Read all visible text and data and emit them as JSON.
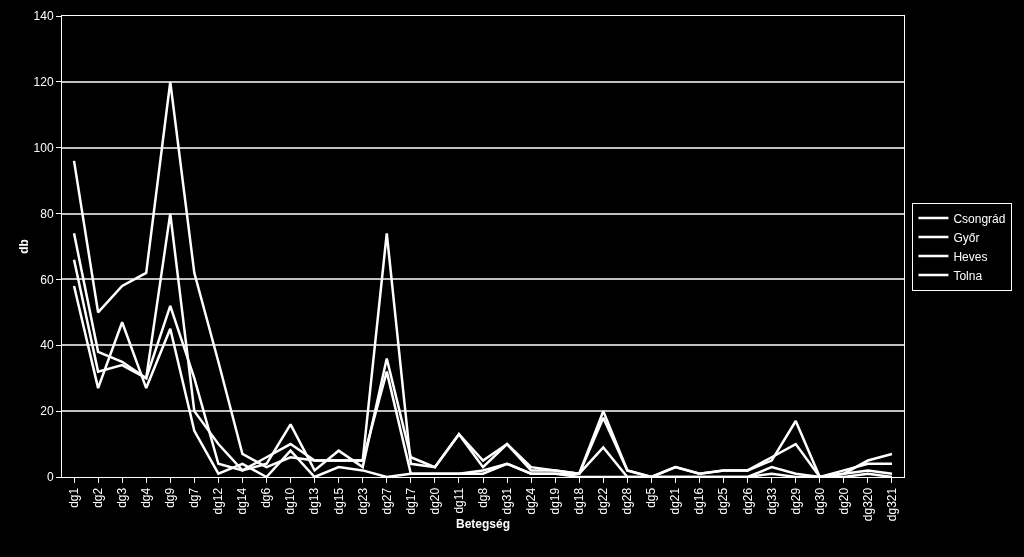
{
  "chart_data": {
    "type": "line",
    "xlabel": "Betegség",
    "ylabel": "db",
    "categories": [
      "dg1",
      "dg2",
      "dg3",
      "dg4",
      "dg9",
      "dg7",
      "dg12",
      "dg14",
      "dg6",
      "dg10",
      "dg13",
      "dg15",
      "dg23",
      "dg27",
      "dg17",
      "dg20",
      "dg11",
      "dg8",
      "dg31",
      "dg24",
      "dg19",
      "dg18",
      "dg22",
      "dg28",
      "dg5",
      "dg21",
      "dg16",
      "dg25",
      "dg26",
      "dg33",
      "dg29",
      "dg30",
      "dg20",
      "dg320",
      "dg321"
    ],
    "series": [
      {
        "name": "Csongrád",
        "color": "#ffffff",
        "values": [
          96,
          50,
          58,
          62,
          120,
          62,
          35,
          7,
          3,
          6,
          5,
          5,
          5,
          74,
          4,
          3,
          13,
          5,
          10,
          3,
          2,
          1,
          20,
          2,
          0,
          3,
          1,
          2,
          2,
          5,
          17,
          0,
          1,
          5,
          7
        ]
      },
      {
        "name": "Győr",
        "color": "#ffffff",
        "values": [
          74,
          38,
          35,
          30,
          80,
          20,
          10,
          2,
          4,
          16,
          2,
          8,
          3,
          36,
          6,
          3,
          13,
          3,
          10,
          2,
          2,
          1,
          18,
          2,
          0,
          3,
          1,
          2,
          2,
          6,
          10,
          0,
          2,
          4,
          4
        ]
      },
      {
        "name": "Heves",
        "color": "#ffffff",
        "values": [
          66,
          32,
          34,
          30,
          52,
          30,
          4,
          2,
          6,
          10,
          5,
          5,
          5,
          32,
          1,
          1,
          1,
          1,
          4,
          1,
          1,
          1,
          9,
          0,
          0,
          0,
          0,
          0,
          0,
          3,
          1,
          0,
          1,
          2,
          1
        ]
      },
      {
        "name": "Tolna",
        "color": "#ffffff",
        "values": [
          58,
          27,
          47,
          27,
          45,
          14,
          1,
          4,
          0,
          8,
          0,
          3,
          2,
          0,
          1,
          1,
          1,
          2,
          4,
          1,
          1,
          0,
          0,
          0,
          0,
          0,
          0,
          0,
          0,
          1,
          0,
          0,
          0,
          1,
          0
        ]
      }
    ],
    "ylim": [
      0,
      140
    ],
    "yticks": [
      0,
      20,
      40,
      60,
      80,
      100,
      120,
      140
    ],
    "grid": "y",
    "legend": "right",
    "marker": "none",
    "line_style": "solid"
  }
}
